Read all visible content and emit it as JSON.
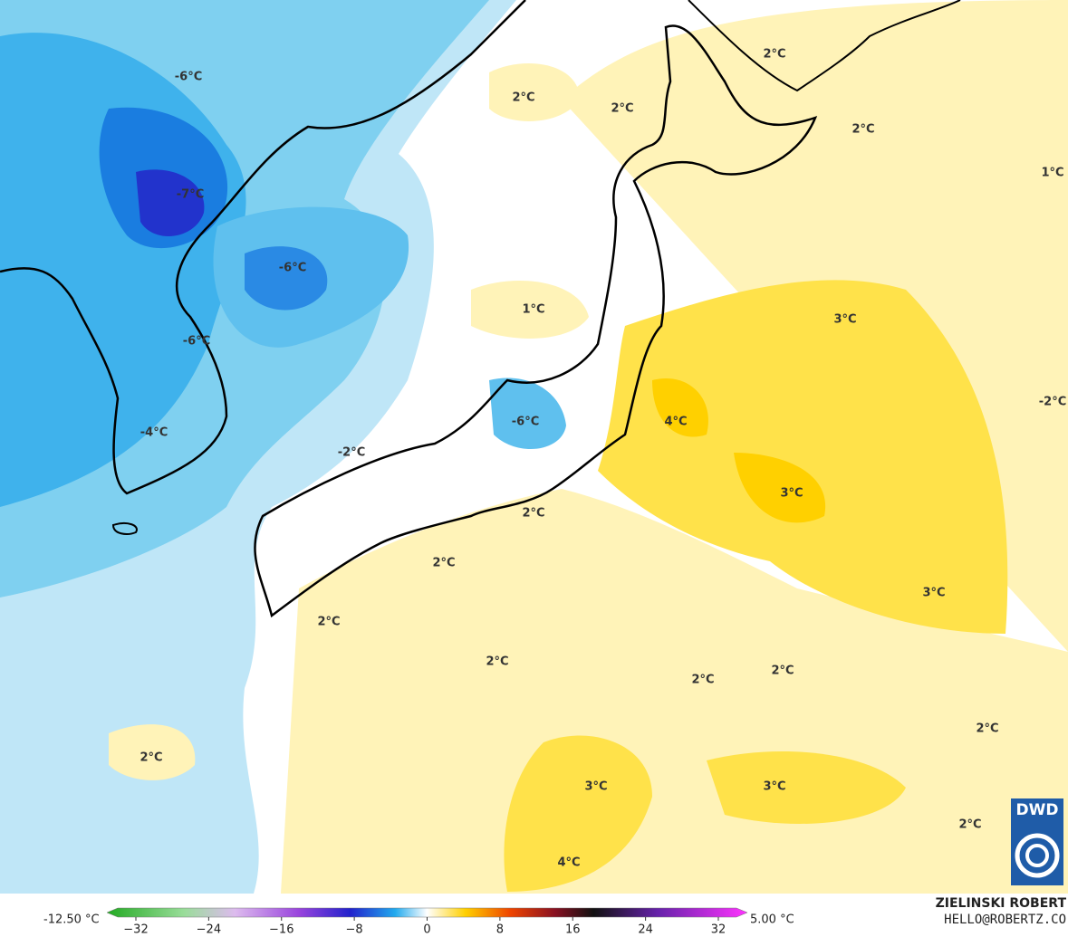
{
  "map": {
    "contour_labels": [
      "-6°C",
      "-7°C",
      "-6°C",
      "-6°C",
      "-4°C",
      "-2°C",
      "-6°C",
      "2°C",
      "2°C",
      "2°C",
      "2°C",
      "1°C",
      "1°C",
      "3°C",
      "-2°C",
      "4°C",
      "3°C",
      "2°C",
      "2°C",
      "3°C",
      "2°C",
      "2°C",
      "2°C",
      "2°C",
      "2°C",
      "2°C",
      "3°C",
      "3°C",
      "2°C",
      "4°C"
    ],
    "logo": "DWD"
  },
  "colorbar": {
    "min_label": "-12.50 °C",
    "max_label": "5.00 °C",
    "ticks": [
      {
        "value": -32,
        "label": "−32"
      },
      {
        "value": -24,
        "label": "−24"
      },
      {
        "value": -16,
        "label": "−16"
      },
      {
        "value": -8,
        "label": "−8"
      },
      0,
      8,
      16,
      24,
      32
    ]
  },
  "credit": {
    "name": "ZIELINSKI ROBERT",
    "email": "HELLO@ROBERTZ.CO"
  }
}
